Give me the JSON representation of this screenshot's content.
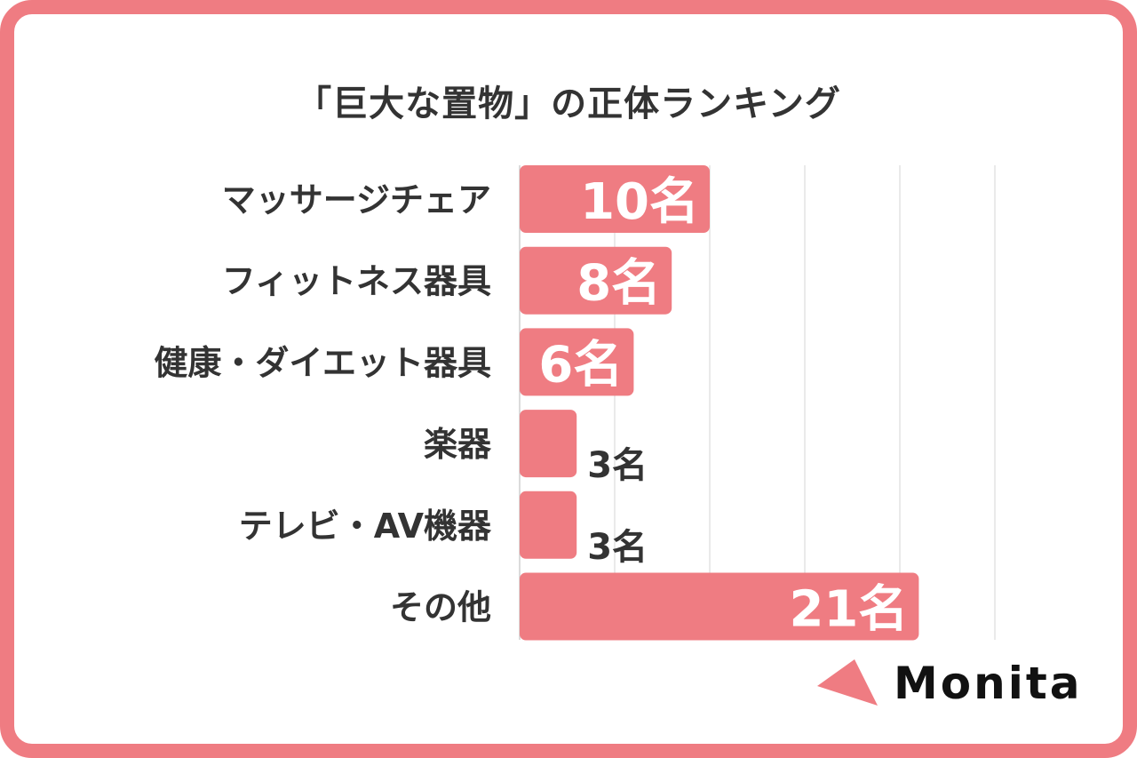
{
  "chart_data": {
    "type": "bar",
    "orientation": "horizontal",
    "title": "「巨大な置物」の正体ランキング",
    "categories": [
      "マッサージチェア",
      "フィットネス器具",
      "健康・ダイエット器具",
      "楽器",
      "テレビ・AV機器",
      "その他"
    ],
    "values": [
      10,
      8,
      6,
      3,
      3,
      21
    ],
    "value_labels": [
      "10名",
      "8名",
      "6名",
      "3名",
      "3名",
      "21名"
    ],
    "xlim": [
      0,
      25
    ],
    "grid": true,
    "bar_color": "#ef7c82"
  },
  "brand": {
    "logo_text": "Monita",
    "accent_color": "#ef7c82"
  }
}
